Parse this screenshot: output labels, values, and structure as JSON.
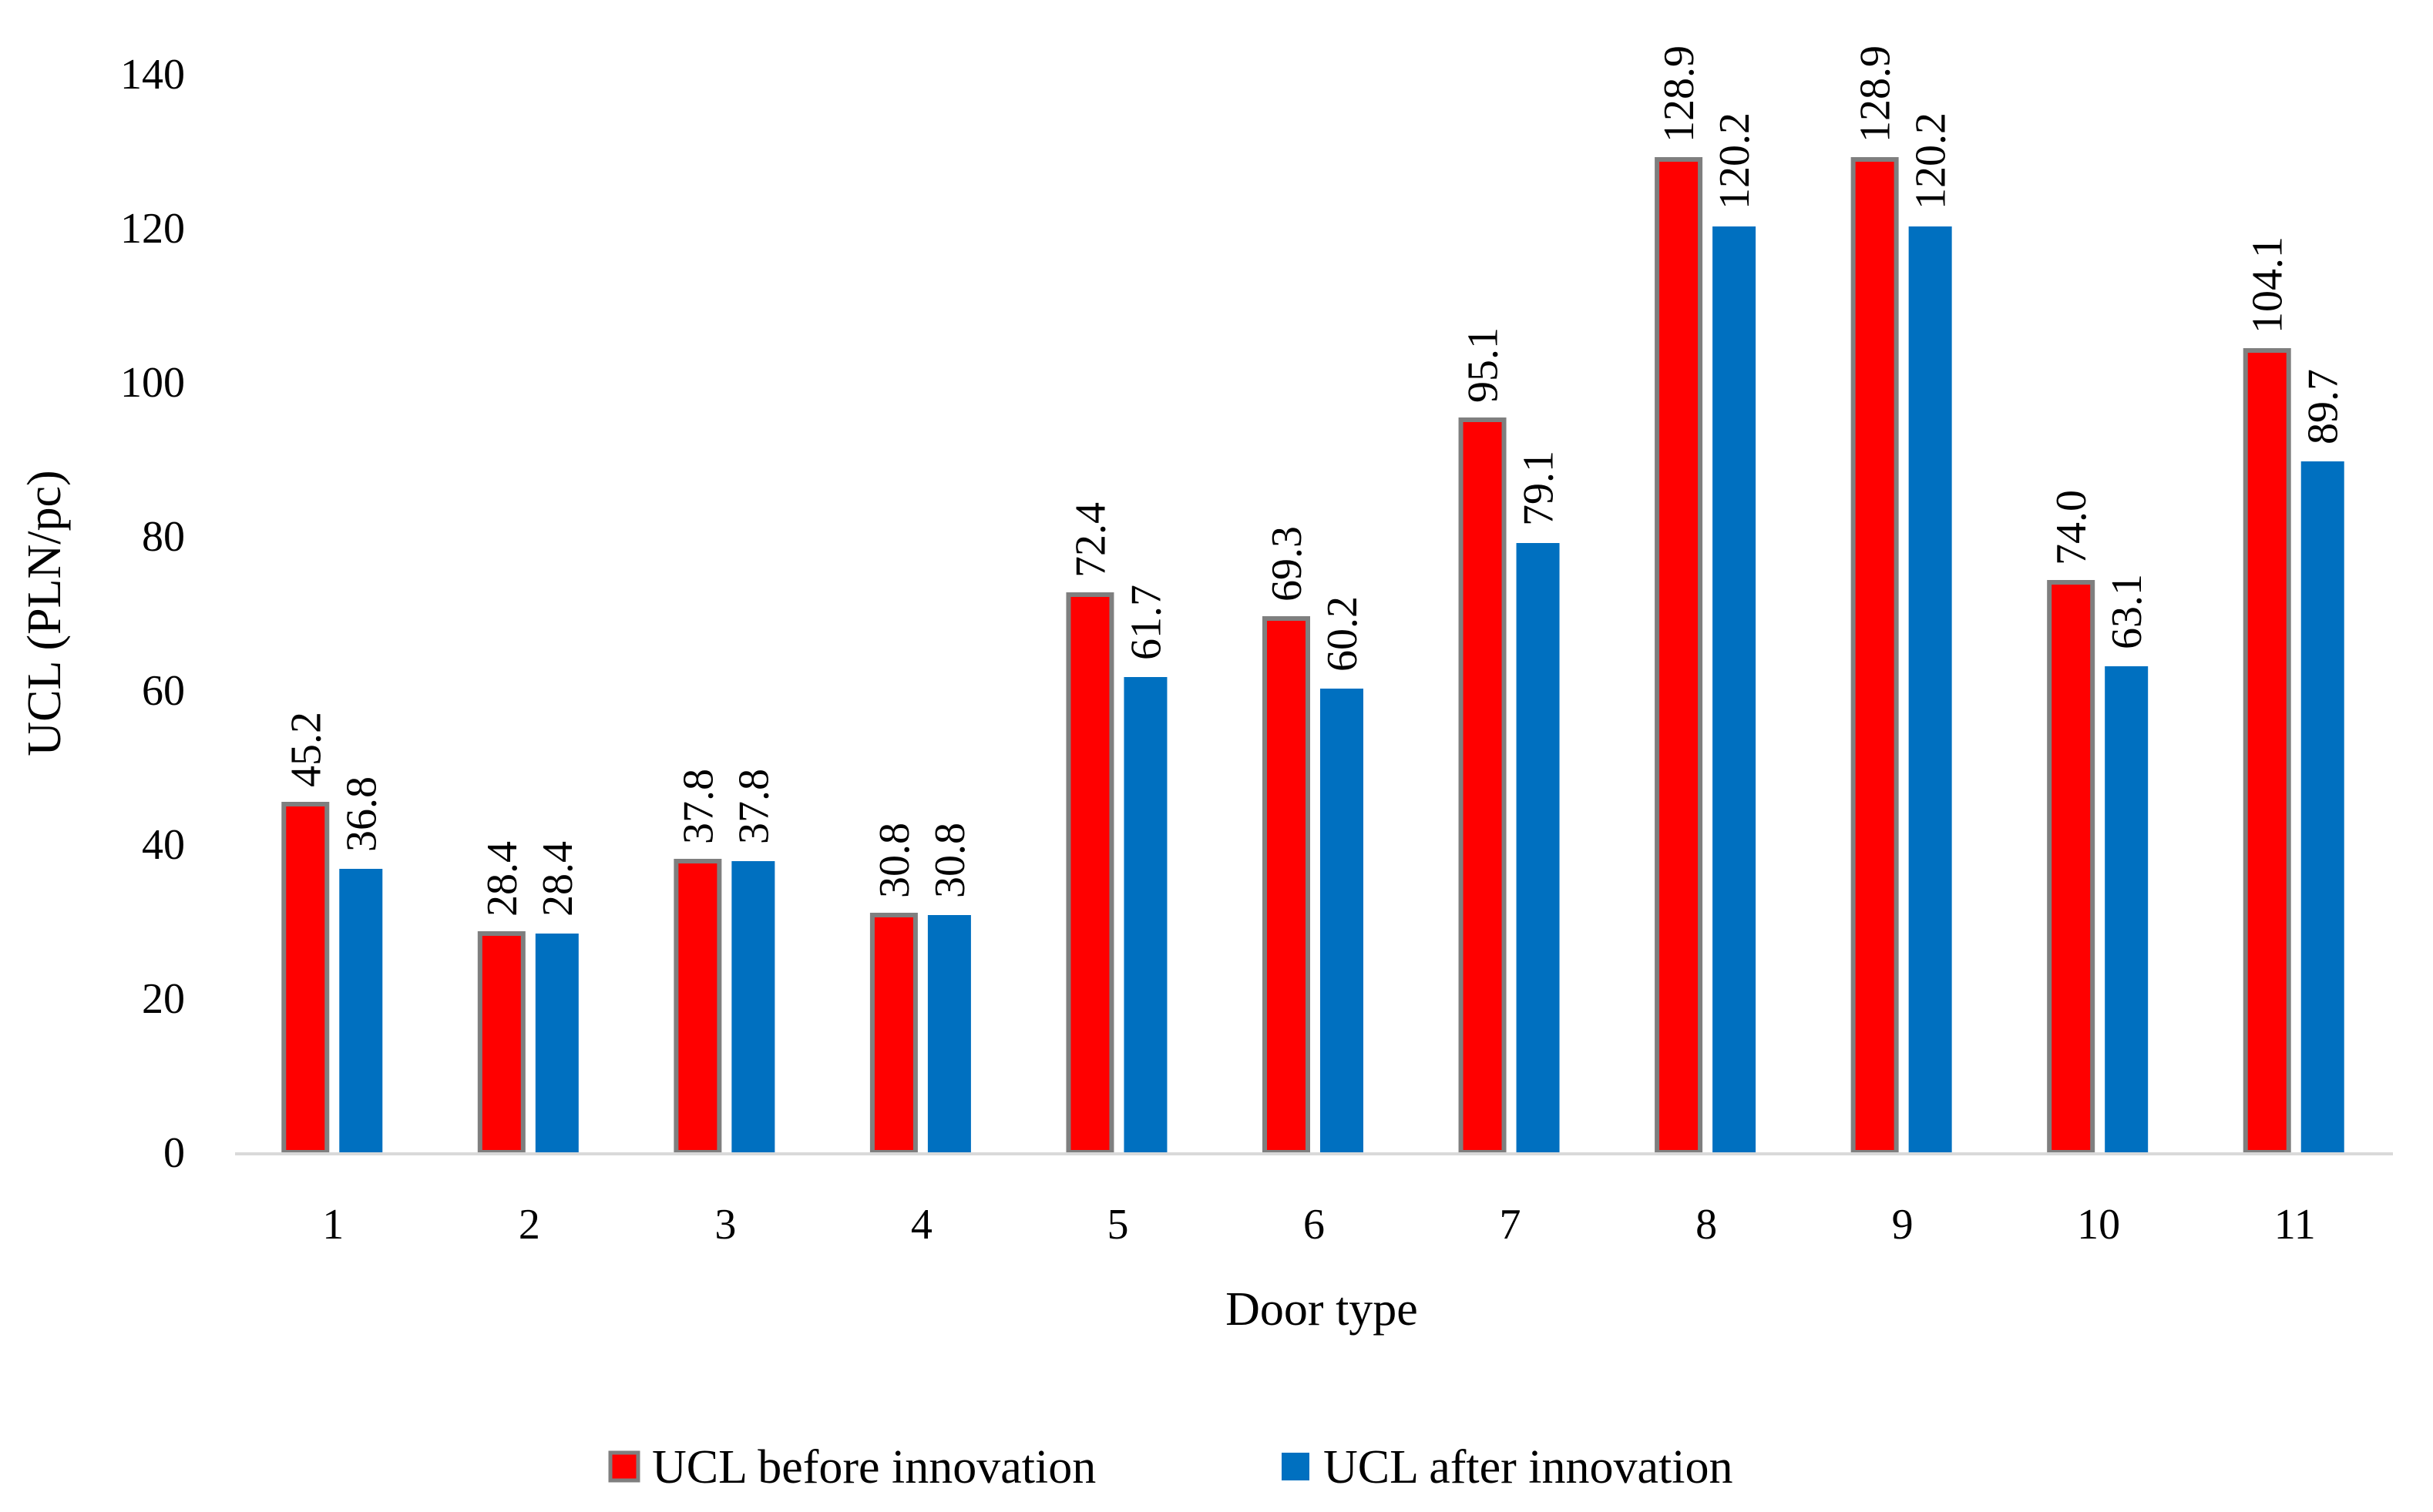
{
  "chart_data": {
    "type": "bar",
    "title": "",
    "xlabel": "Door type",
    "ylabel": "UCL (PLN/pc)",
    "categories": [
      "1",
      "2",
      "3",
      "4",
      "5",
      "6",
      "7",
      "8",
      "9",
      "10",
      "11"
    ],
    "series": [
      {
        "name": "UCL before innovation",
        "color": "#ff0000",
        "border_color": "#7f7f7f",
        "values": [
          45.2,
          28.4,
          37.8,
          30.8,
          72.4,
          69.3,
          95.1,
          128.9,
          128.9,
          74.0,
          104.1
        ],
        "labels": [
          "45.2",
          "28.4",
          "37.8",
          "30.8",
          "72.4",
          "69.3",
          "95.1",
          "128.9",
          "128.9",
          "74.0",
          "104.1"
        ]
      },
      {
        "name": "UCL after innovation",
        "color": "#0070c0",
        "values": [
          36.8,
          28.4,
          37.8,
          30.8,
          61.7,
          60.2,
          79.1,
          120.2,
          120.2,
          63.1,
          89.7
        ],
        "labels": [
          "36.8",
          "28.4",
          "37.8",
          "30.8",
          "61.7",
          "60.2",
          "79.1",
          "120.2",
          "120.2",
          "63.1",
          "89.7"
        ]
      }
    ],
    "ylim": [
      0,
      140
    ],
    "yticks": [
      0,
      20,
      40,
      60,
      80,
      100,
      120,
      140
    ],
    "yticks_labels": [
      "0",
      "20",
      "40",
      "60",
      "80",
      "100",
      "120",
      "140"
    ],
    "grid": false,
    "legend": "bottom-center"
  }
}
